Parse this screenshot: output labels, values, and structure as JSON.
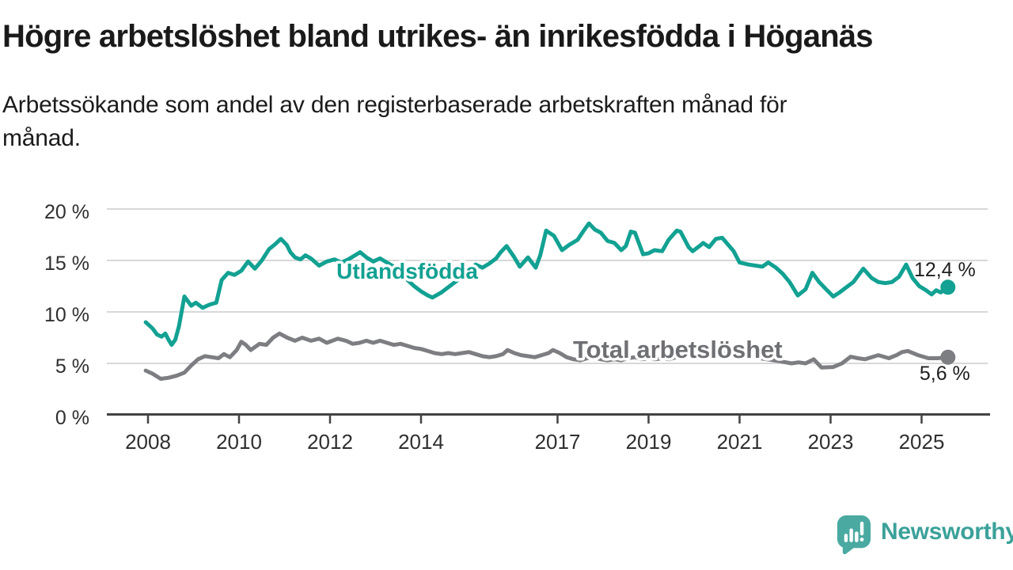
{
  "page": {
    "background": "#ffffff"
  },
  "header": {
    "title": "Högre arbetslöshet bland utrikes- än inrikesfödda i Höganäs",
    "subtitle_line1": "Arbetssökande som andel av den registerbaserade arbetskraften månad för",
    "subtitle_line2": "månad.",
    "subtitle_full": "Arbetssökande som andel av den registerbaserade arbetskraften månad för månad."
  },
  "footer": {
    "brand": "Newsworthy",
    "logo_icon": "bar-chart-speech-bubble-icon"
  },
  "colors": {
    "foreign_born_line": "#12a192",
    "total_line": "#7d7e82",
    "total_label": "#6f7074",
    "gridline": "#d8d8d8",
    "axis": "#424242",
    "tick_text": "#2f2f2f",
    "end_label_text": "#1f1f1f",
    "title_text": "#1a1a1a",
    "logo_icon": "#4aaaa2",
    "logo_text": "#3ba19a"
  },
  "chart_data": {
    "type": "line",
    "title": "",
    "xlabel": "",
    "ylabel": "",
    "ylim": [
      0,
      20
    ],
    "x_range": [
      2007.95,
      2025.58
    ],
    "grid": true,
    "legend_position": "inline",
    "yticks": [
      {
        "value": 0,
        "label": "0 %"
      },
      {
        "value": 5,
        "label": "5 %"
      },
      {
        "value": 10,
        "label": "10 %"
      },
      {
        "value": 15,
        "label": "15 %"
      },
      {
        "value": 20,
        "label": "20 %"
      }
    ],
    "xticks": [
      {
        "value": 2008,
        "label": "2008"
      },
      {
        "value": 2010,
        "label": "2010"
      },
      {
        "value": 2012,
        "label": "2012"
      },
      {
        "value": 2014,
        "label": "2014"
      },
      {
        "value": 2017,
        "label": "2017"
      },
      {
        "value": 2019,
        "label": "2019"
      },
      {
        "value": 2021,
        "label": "2021"
      },
      {
        "value": 2023,
        "label": "2023"
      },
      {
        "value": 2025,
        "label": "2025"
      }
    ],
    "series": [
      {
        "name": "Utlandsfödda",
        "color": "#12a192",
        "label_color": "#12a192",
        "label_at": {
          "x": 2012.14,
          "y": 13.23
        },
        "end_label": "12,4 %",
        "end_value": 12.4,
        "end_label_side": "above",
        "points": [
          [
            2007.95,
            9.0
          ],
          [
            2008.1,
            8.4
          ],
          [
            2008.2,
            7.8
          ],
          [
            2008.3,
            7.6
          ],
          [
            2008.38,
            7.9
          ],
          [
            2008.45,
            7.3
          ],
          [
            2008.52,
            6.8
          ],
          [
            2008.6,
            7.3
          ],
          [
            2008.68,
            8.6
          ],
          [
            2008.8,
            11.5
          ],
          [
            2008.95,
            10.6
          ],
          [
            2009.05,
            10.9
          ],
          [
            2009.2,
            10.4
          ],
          [
            2009.35,
            10.7
          ],
          [
            2009.5,
            10.9
          ],
          [
            2009.62,
            13.1
          ],
          [
            2009.76,
            13.8
          ],
          [
            2009.9,
            13.6
          ],
          [
            2010.05,
            14.0
          ],
          [
            2010.2,
            14.9
          ],
          [
            2010.35,
            14.2
          ],
          [
            2010.5,
            15.0
          ],
          [
            2010.66,
            16.1
          ],
          [
            2010.8,
            16.6
          ],
          [
            2010.92,
            17.1
          ],
          [
            2011.05,
            16.5
          ],
          [
            2011.13,
            15.8
          ],
          [
            2011.23,
            15.3
          ],
          [
            2011.35,
            15.1
          ],
          [
            2011.46,
            15.5
          ],
          [
            2011.58,
            15.2
          ],
          [
            2011.76,
            14.5
          ],
          [
            2011.93,
            14.9
          ],
          [
            2012.1,
            15.1
          ],
          [
            2012.25,
            14.8
          ],
          [
            2012.4,
            15.1
          ],
          [
            2012.55,
            15.5
          ],
          [
            2012.66,
            15.8
          ],
          [
            2012.8,
            15.3
          ],
          [
            2012.95,
            14.9
          ],
          [
            2013.1,
            15.2
          ],
          [
            2013.25,
            14.8
          ],
          [
            2013.4,
            14.4
          ],
          [
            2013.55,
            13.8
          ],
          [
            2013.7,
            13.1
          ],
          [
            2013.85,
            12.5
          ],
          [
            2014.0,
            12.0
          ],
          [
            2014.15,
            11.6
          ],
          [
            2014.25,
            11.4
          ],
          [
            2014.45,
            11.9
          ],
          [
            2014.6,
            12.4
          ],
          [
            2014.75,
            12.9
          ],
          [
            2014.9,
            13.4
          ],
          [
            2015.05,
            13.8
          ],
          [
            2015.2,
            14.6
          ],
          [
            2015.35,
            14.3
          ],
          [
            2015.5,
            14.7
          ],
          [
            2015.65,
            15.2
          ],
          [
            2015.75,
            15.8
          ],
          [
            2015.88,
            16.4
          ],
          [
            2016.05,
            15.3
          ],
          [
            2016.17,
            14.4
          ],
          [
            2016.35,
            15.3
          ],
          [
            2016.52,
            14.3
          ],
          [
            2016.62,
            15.5
          ],
          [
            2016.75,
            17.9
          ],
          [
            2016.92,
            17.4
          ],
          [
            2017.1,
            16.0
          ],
          [
            2017.25,
            16.5
          ],
          [
            2017.44,
            17.0
          ],
          [
            2017.56,
            17.8
          ],
          [
            2017.69,
            18.6
          ],
          [
            2017.82,
            18.0
          ],
          [
            2017.95,
            17.7
          ],
          [
            2018.1,
            16.9
          ],
          [
            2018.25,
            16.7
          ],
          [
            2018.4,
            16.0
          ],
          [
            2018.5,
            16.4
          ],
          [
            2018.61,
            17.8
          ],
          [
            2018.7,
            17.7
          ],
          [
            2018.88,
            15.6
          ],
          [
            2019.0,
            15.7
          ],
          [
            2019.13,
            16.0
          ],
          [
            2019.3,
            15.9
          ],
          [
            2019.44,
            17.0
          ],
          [
            2019.62,
            17.9
          ],
          [
            2019.7,
            17.8
          ],
          [
            2019.88,
            16.3
          ],
          [
            2019.97,
            15.9
          ],
          [
            2020.12,
            16.4
          ],
          [
            2020.2,
            16.7
          ],
          [
            2020.33,
            16.3
          ],
          [
            2020.48,
            17.1
          ],
          [
            2020.62,
            17.2
          ],
          [
            2020.87,
            15.9
          ],
          [
            2021.0,
            14.8
          ],
          [
            2021.2,
            14.6
          ],
          [
            2021.35,
            14.5
          ],
          [
            2021.5,
            14.4
          ],
          [
            2021.63,
            14.8
          ],
          [
            2021.8,
            14.3
          ],
          [
            2021.95,
            13.7
          ],
          [
            2022.1,
            12.9
          ],
          [
            2022.28,
            11.6
          ],
          [
            2022.45,
            12.2
          ],
          [
            2022.6,
            13.8
          ],
          [
            2022.75,
            12.9
          ],
          [
            2022.9,
            12.2
          ],
          [
            2023.06,
            11.5
          ],
          [
            2023.2,
            11.9
          ],
          [
            2023.35,
            12.4
          ],
          [
            2023.5,
            12.9
          ],
          [
            2023.65,
            13.8
          ],
          [
            2023.72,
            14.2
          ],
          [
            2023.9,
            13.3
          ],
          [
            2024.05,
            12.9
          ],
          [
            2024.2,
            12.8
          ],
          [
            2024.35,
            12.9
          ],
          [
            2024.5,
            13.4
          ],
          [
            2024.66,
            14.6
          ],
          [
            2024.8,
            13.3
          ],
          [
            2024.95,
            12.5
          ],
          [
            2025.1,
            12.1
          ],
          [
            2025.22,
            11.7
          ],
          [
            2025.32,
            12.1
          ],
          [
            2025.42,
            11.9
          ],
          [
            2025.58,
            12.4
          ]
        ]
      },
      {
        "name": "Total arbetslöshet",
        "color": "#7d7e82",
        "label_color": "#6f7074",
        "label_at": {
          "x": 2017.34,
          "y": 5.54
        },
        "end_label": "5,6 %",
        "end_value": 5.6,
        "end_label_side": "below",
        "points": [
          [
            2007.95,
            4.3
          ],
          [
            2008.1,
            4.0
          ],
          [
            2008.28,
            3.5
          ],
          [
            2008.45,
            3.6
          ],
          [
            2008.63,
            3.8
          ],
          [
            2008.8,
            4.1
          ],
          [
            2008.95,
            4.8
          ],
          [
            2009.1,
            5.4
          ],
          [
            2009.25,
            5.7
          ],
          [
            2009.4,
            5.6
          ],
          [
            2009.55,
            5.5
          ],
          [
            2009.67,
            5.9
          ],
          [
            2009.8,
            5.6
          ],
          [
            2009.95,
            6.3
          ],
          [
            2010.05,
            7.1
          ],
          [
            2010.15,
            6.8
          ],
          [
            2010.26,
            6.3
          ],
          [
            2010.45,
            6.9
          ],
          [
            2010.6,
            6.8
          ],
          [
            2010.75,
            7.5
          ],
          [
            2010.89,
            7.9
          ],
          [
            2011.06,
            7.5
          ],
          [
            2011.23,
            7.2
          ],
          [
            2011.39,
            7.5
          ],
          [
            2011.58,
            7.2
          ],
          [
            2011.76,
            7.4
          ],
          [
            2011.93,
            7.0
          ],
          [
            2012.17,
            7.4
          ],
          [
            2012.35,
            7.2
          ],
          [
            2012.5,
            6.9
          ],
          [
            2012.65,
            7.0
          ],
          [
            2012.8,
            7.2
          ],
          [
            2012.95,
            7.0
          ],
          [
            2013.1,
            7.2
          ],
          [
            2013.25,
            7.0
          ],
          [
            2013.4,
            6.8
          ],
          [
            2013.55,
            6.9
          ],
          [
            2013.7,
            6.7
          ],
          [
            2013.85,
            6.5
          ],
          [
            2014.0,
            6.4
          ],
          [
            2014.15,
            6.2
          ],
          [
            2014.3,
            6.0
          ],
          [
            2014.45,
            5.9
          ],
          [
            2014.6,
            6.0
          ],
          [
            2014.75,
            5.9
          ],
          [
            2014.9,
            6.0
          ],
          [
            2015.05,
            6.1
          ],
          [
            2015.2,
            5.9
          ],
          [
            2015.35,
            5.7
          ],
          [
            2015.5,
            5.6
          ],
          [
            2015.65,
            5.7
          ],
          [
            2015.8,
            5.9
          ],
          [
            2015.9,
            6.3
          ],
          [
            2016.05,
            6.0
          ],
          [
            2016.2,
            5.8
          ],
          [
            2016.35,
            5.7
          ],
          [
            2016.5,
            5.6
          ],
          [
            2016.65,
            5.8
          ],
          [
            2016.8,
            6.0
          ],
          [
            2016.9,
            6.3
          ],
          [
            2017.05,
            6.0
          ],
          [
            2017.2,
            5.6
          ],
          [
            2017.35,
            5.4
          ],
          [
            2017.5,
            5.3
          ],
          [
            2017.65,
            5.5
          ],
          [
            2017.8,
            5.6
          ],
          [
            2017.95,
            5.4
          ],
          [
            2018.1,
            5.3
          ],
          [
            2018.25,
            5.4
          ],
          [
            2018.4,
            5.3
          ],
          [
            2018.55,
            5.5
          ],
          [
            2018.7,
            5.6
          ],
          [
            2018.85,
            5.4
          ],
          [
            2019.0,
            5.5
          ],
          [
            2019.15,
            5.4
          ],
          [
            2019.3,
            5.5
          ],
          [
            2019.45,
            5.4
          ],
          [
            2019.6,
            5.6
          ],
          [
            2019.75,
            5.7
          ],
          [
            2019.9,
            5.8
          ],
          [
            2020.05,
            5.9
          ],
          [
            2020.2,
            6.0
          ],
          [
            2020.35,
            6.1
          ],
          [
            2020.5,
            6.0
          ],
          [
            2020.65,
            6.0
          ],
          [
            2020.8,
            5.9
          ],
          [
            2021.0,
            5.9
          ],
          [
            2021.3,
            5.6
          ],
          [
            2021.6,
            5.4
          ],
          [
            2021.9,
            5.2
          ],
          [
            2022.14,
            5.0
          ],
          [
            2022.3,
            5.1
          ],
          [
            2022.45,
            5.0
          ],
          [
            2022.63,
            5.4
          ],
          [
            2022.8,
            4.6
          ],
          [
            2023.06,
            4.65
          ],
          [
            2023.25,
            5.0
          ],
          [
            2023.44,
            5.65
          ],
          [
            2023.6,
            5.5
          ],
          [
            2023.76,
            5.4
          ],
          [
            2023.9,
            5.6
          ],
          [
            2024.05,
            5.8
          ],
          [
            2024.28,
            5.5
          ],
          [
            2024.45,
            5.8
          ],
          [
            2024.57,
            6.1
          ],
          [
            2024.7,
            6.2
          ],
          [
            2024.92,
            5.8
          ],
          [
            2025.15,
            5.5
          ],
          [
            2025.36,
            5.5
          ],
          [
            2025.58,
            5.6
          ]
        ]
      }
    ]
  }
}
